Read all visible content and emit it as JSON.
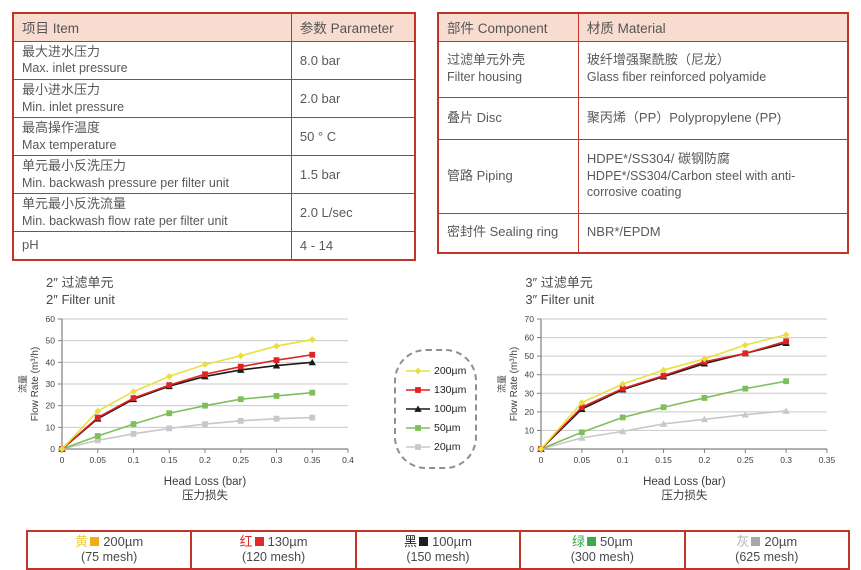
{
  "colors": {
    "border_red": "#c13529",
    "header_bg": "#f8dcd0",
    "text_gray": "#595959",
    "gridline": "#c9c9c9",
    "axis": "#808080"
  },
  "spec_table": {
    "headers": [
      "项目 Item",
      "参数 Parameter"
    ],
    "rows": [
      {
        "item_cn": "最大进水压力",
        "item_en": "Max. inlet pressure",
        "value": "8.0 bar"
      },
      {
        "item_cn": "最小进水压力",
        "item_en": "Min. inlet pressure",
        "value": "2.0 bar"
      },
      {
        "item_cn": "最高操作温度",
        "item_en": "Max temperature",
        "value": "50 ° C"
      },
      {
        "item_cn": "单元最小反洗压力",
        "item_en": "Min. backwash pressure per filter unit",
        "value": "1.5 bar"
      },
      {
        "item_cn": "单元最小反洗流量",
        "item_en": "Min. backwash flow rate per filter unit",
        "value": "2.0 L/sec"
      },
      {
        "item_cn": "pH",
        "item_en": "",
        "value": "4 - 14"
      }
    ]
  },
  "material_table": {
    "headers": [
      "部件 Component",
      "材质 Material"
    ],
    "rows": [
      {
        "component_cn": "过滤单元外壳",
        "component_en": "Filter housing",
        "material_cn": "玻纤增强聚酰胺（尼龙）",
        "material_en": "Glass fiber reinforced polyamide"
      },
      {
        "component_cn": "叠片 Disc",
        "component_en": "",
        "material_cn": "聚丙烯（PP）Polypropylene (PP)",
        "material_en": ""
      },
      {
        "component_cn": "管路 Piping",
        "component_en": "",
        "material_cn": "HDPE*/SS304/ 碳钢防腐",
        "material_en": "HDPE*/SS304/Carbon steel with anti-corrosive coating"
      },
      {
        "component_cn": "密封件 Sealing ring",
        "component_en": "",
        "material_cn": "NBR*/EPDM",
        "material_en": ""
      }
    ]
  },
  "chart_data": [
    {
      "type": "line",
      "title_cn": "2″ 过滤单元",
      "title_en": "2″ Filter unit",
      "xlabel": "Head Loss (bar)",
      "xlabel_cn": "压力损失",
      "ylabel_cn": "流量",
      "ylabel": "Flow Rate (m³/h)",
      "xlim": [
        0,
        0.4
      ],
      "ylim": [
        0,
        60
      ],
      "ystep": 10,
      "xticks": [
        0,
        0.05,
        0.1,
        0.15,
        0.2,
        0.25,
        0.3,
        0.35,
        0.4
      ],
      "x": [
        0,
        0.05,
        0.1,
        0.15,
        0.2,
        0.25,
        0.3,
        0.35
      ],
      "grid": "horizontal",
      "series": [
        {
          "name": "200µm",
          "color": "#e8e040",
          "marker": "diamond",
          "values": [
            0,
            17.5,
            26.5,
            33.5,
            39,
            43,
            47.5,
            50.5
          ]
        },
        {
          "name": "130µm",
          "color": "#e02424",
          "marker": "square",
          "values": [
            0,
            14.5,
            23.5,
            29.5,
            34.5,
            38,
            41,
            43.5
          ]
        },
        {
          "name": "100µm",
          "color": "#1a1a1a",
          "marker": "triangle",
          "values": [
            0,
            14,
            23,
            29,
            33.5,
            36.5,
            38.5,
            40
          ]
        },
        {
          "name": "50µm",
          "color": "#7fbf5a",
          "marker": "square",
          "values": [
            0,
            6,
            11.5,
            16.5,
            20,
            23,
            24.5,
            26
          ]
        },
        {
          "name": "20µm",
          "color": "#c8c8c8",
          "marker": "square",
          "values": [
            0,
            4,
            7,
            9.5,
            11.5,
            13,
            14,
            14.5
          ]
        }
      ]
    },
    {
      "type": "line",
      "title_cn": "3″ 过滤单元",
      "title_en": "3″ Filter unit",
      "xlabel": "Head Loss (bar)",
      "xlabel_cn": "压力损失",
      "ylabel_cn": "流量",
      "ylabel": "Flow Rate (m³/h)",
      "xlim": [
        0,
        0.35
      ],
      "ylim": [
        0,
        70
      ],
      "ystep": 10,
      "xticks": [
        0,
        0.05,
        0.1,
        0.15,
        0.2,
        0.25,
        0.3,
        0.35
      ],
      "x": [
        0,
        0.05,
        0.1,
        0.15,
        0.2,
        0.25,
        0.3
      ],
      "grid": "horizontal",
      "series": [
        {
          "name": "200µm",
          "color": "#e8e040",
          "marker": "diamond",
          "values": [
            0,
            25,
            35,
            42.5,
            48.5,
            56,
            61.5
          ]
        },
        {
          "name": "130µm",
          "color": "#e02424",
          "marker": "square",
          "values": [
            0,
            22.5,
            32.5,
            39.5,
            47,
            51.5,
            58
          ]
        },
        {
          "name": "100µm",
          "color": "#1a1a1a",
          "marker": "triangle",
          "values": [
            0,
            21.5,
            32,
            39,
            46,
            51.5,
            57
          ]
        },
        {
          "name": "50µm",
          "color": "#7fbf5a",
          "marker": "square",
          "values": [
            0,
            9,
            17,
            22.5,
            27.5,
            32.5,
            36.5
          ]
        },
        {
          "name": "20µm",
          "color": "#c8c8c8",
          "marker": "triangle",
          "values": [
            0,
            6,
            9.5,
            13.5,
            16,
            18.5,
            20.5
          ]
        }
      ]
    }
  ],
  "chart_legend": {
    "entries": [
      {
        "label": "200µm",
        "color": "#e8e040",
        "marker": "diamond"
      },
      {
        "label": "130µm",
        "color": "#e02424",
        "marker": "square"
      },
      {
        "label": "100µm",
        "color": "#1a1a1a",
        "marker": "triangle"
      },
      {
        "label": "50µm",
        "color": "#7fbf5a",
        "marker": "square"
      },
      {
        "label": "20µm",
        "color": "#c8c8c8",
        "marker": "square"
      }
    ]
  },
  "mesh_legend": {
    "cells": [
      {
        "color_cn": "黄",
        "char_color": "#eccf45",
        "swatch_color": "#f0ad17",
        "size": "200µm",
        "mesh": "(75 mesh)"
      },
      {
        "color_cn": "红",
        "char_color": "#e02b2b",
        "swatch_color": "#e02b2b",
        "size": "130µm",
        "mesh": "(120 mesh)"
      },
      {
        "color_cn": "黑",
        "char_color": "#1f1f1f",
        "swatch_color": "#1f1f1f",
        "size": "100µm",
        "mesh": "(150 mesh)"
      },
      {
        "color_cn": "绿",
        "char_color": "#3aa94f",
        "swatch_color": "#3aa94f",
        "size": "50µm",
        "mesh": "(300 mesh)"
      },
      {
        "color_cn": "灰",
        "char_color": "#b5b5b5",
        "swatch_color": "#a8a8a8",
        "size": "20µm",
        "mesh": "(625 mesh)"
      }
    ]
  }
}
